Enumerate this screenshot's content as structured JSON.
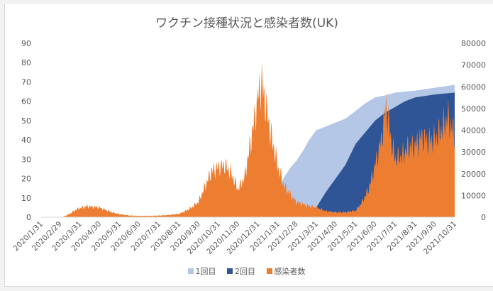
{
  "chart_data": {
    "type": "area",
    "title": "ワクチン接種状況と感染者数(UK)",
    "x_tick_labels": [
      "2020/1/31",
      "2020/2/29",
      "2020/3/31",
      "2020/4/30",
      "2020/5/31",
      "2020/6/30",
      "2020/7/31",
      "2020/8/31",
      "2020/9/30",
      "2020/10/31",
      "2020/11/30",
      "2020/12/31",
      "2021/1/31",
      "2021/2/28",
      "2021/3/31",
      "2021/4/30",
      "2021/5/31",
      "2021/6/30",
      "2021/7/31",
      "2021/8/31",
      "2021/9/30",
      "2021/10/31"
    ],
    "y_left": {
      "ticks": [
        "0",
        "10",
        "20",
        "30",
        "40",
        "50",
        "60",
        "70",
        "80",
        "90"
      ],
      "ylim": [
        0,
        90
      ]
    },
    "y_right": {
      "ticks": [
        "0",
        "10000",
        "20000",
        "30000",
        "40000",
        "50000",
        "60000",
        "70000",
        "80000"
      ],
      "ylim": [
        0,
        80000
      ]
    },
    "grid": false,
    "legend_position": "bottom",
    "series": [
      {
        "name": "1回目",
        "axis": "left",
        "style": "area",
        "color": "#b4c7e7",
        "points": [
          [
            "2020/12/8",
            0
          ],
          [
            "2020/12/31",
            1
          ],
          [
            "2021/1/10",
            4
          ],
          [
            "2021/1/20",
            8
          ],
          [
            "2021/1/31",
            14
          ],
          [
            "2021/2/10",
            21
          ],
          [
            "2021/2/20",
            26
          ],
          [
            "2021/2/28",
            29
          ],
          [
            "2021/3/10",
            34
          ],
          [
            "2021/3/20",
            40
          ],
          [
            "2021/3/31",
            45
          ],
          [
            "2021/4/15",
            47
          ],
          [
            "2021/4/30",
            49
          ],
          [
            "2021/5/15",
            51
          ],
          [
            "2021/5/31",
            55
          ],
          [
            "2021/6/15",
            59
          ],
          [
            "2021/6/30",
            62
          ],
          [
            "2021/7/15",
            63
          ],
          [
            "2021/7/31",
            64.5
          ],
          [
            "2021/8/31",
            65.5
          ],
          [
            "2021/9/30",
            67
          ],
          [
            "2021/10/31",
            68.5
          ]
        ]
      },
      {
        "name": "2回目",
        "axis": "left",
        "style": "area",
        "color": "#2f5597",
        "points": [
          [
            "2020/12/29",
            0
          ],
          [
            "2021/1/31",
            0.8
          ],
          [
            "2021/2/28",
            1
          ],
          [
            "2021/3/15",
            1.8
          ],
          [
            "2021/3/31",
            5
          ],
          [
            "2021/4/15",
            13
          ],
          [
            "2021/4/30",
            20
          ],
          [
            "2021/5/15",
            27
          ],
          [
            "2021/5/31",
            38
          ],
          [
            "2021/6/15",
            44
          ],
          [
            "2021/6/30",
            50
          ],
          [
            "2021/7/15",
            54
          ],
          [
            "2021/7/31",
            57
          ],
          [
            "2021/8/15",
            60
          ],
          [
            "2021/8/31",
            62
          ],
          [
            "2021/9/30",
            63.5
          ],
          [
            "2021/10/31",
            64.5
          ]
        ]
      },
      {
        "name": "感染者数",
        "axis": "right",
        "style": "column",
        "color": "#ed7d31",
        "points": [
          [
            "2020/2/20",
            0
          ],
          [
            "2020/3/5",
            200
          ],
          [
            "2020/3/15",
            1500
          ],
          [
            "2020/3/25",
            3500
          ],
          [
            "2020/3/31",
            4200
          ],
          [
            "2020/4/10",
            5000
          ],
          [
            "2020/4/20",
            4800
          ],
          [
            "2020/4/30",
            4500
          ],
          [
            "2020/5/10",
            3300
          ],
          [
            "2020/5/20",
            2200
          ],
          [
            "2020/5/31",
            1400
          ],
          [
            "2020/6/15",
            800
          ],
          [
            "2020/6/30",
            600
          ],
          [
            "2020/7/15",
            600
          ],
          [
            "2020/7/31",
            750
          ],
          [
            "2020/8/15",
            1000
          ],
          [
            "2020/8/31",
            1500
          ],
          [
            "2020/9/10",
            2800
          ],
          [
            "2020/9/20",
            4500
          ],
          [
            "2020/9/30",
            7000
          ],
          [
            "2020/10/10",
            14000
          ],
          [
            "2020/10/20",
            21000
          ],
          [
            "2020/10/31",
            23000
          ],
          [
            "2020/11/10",
            24000
          ],
          [
            "2020/11/20",
            20000
          ],
          [
            "2020/11/30",
            13000
          ],
          [
            "2020/12/10",
            18000
          ],
          [
            "2020/12/20",
            35000
          ],
          [
            "2020/12/31",
            55000
          ],
          [
            "2021/1/5",
            63000
          ],
          [
            "2021/1/10",
            55000
          ],
          [
            "2021/1/20",
            38000
          ],
          [
            "2021/1/31",
            23000
          ],
          [
            "2021/2/10",
            14000
          ],
          [
            "2021/2/20",
            10000
          ],
          [
            "2021/2/28",
            7000
          ],
          [
            "2021/3/15",
            5500
          ],
          [
            "2021/3/31",
            4500
          ],
          [
            "2021/4/15",
            2800
          ],
          [
            "2021/4/30",
            2300
          ],
          [
            "2021/5/15",
            2300
          ],
          [
            "2021/5/31",
            3000
          ],
          [
            "2021/6/10",
            7000
          ],
          [
            "2021/6/20",
            13000
          ],
          [
            "2021/6/30",
            24000
          ],
          [
            "2021/7/10",
            36000
          ],
          [
            "2021/7/17",
            52000
          ],
          [
            "2021/7/25",
            35000
          ],
          [
            "2021/7/31",
            27000
          ],
          [
            "2021/8/10",
            28000
          ],
          [
            "2021/8/20",
            32000
          ],
          [
            "2021/8/31",
            33000
          ],
          [
            "2021/9/10",
            37000
          ],
          [
            "2021/9/20",
            35000
          ],
          [
            "2021/9/30",
            36000
          ],
          [
            "2021/10/10",
            40000
          ],
          [
            "2021/10/20",
            46000
          ],
          [
            "2021/10/31",
            38000
          ]
        ]
      }
    ]
  }
}
